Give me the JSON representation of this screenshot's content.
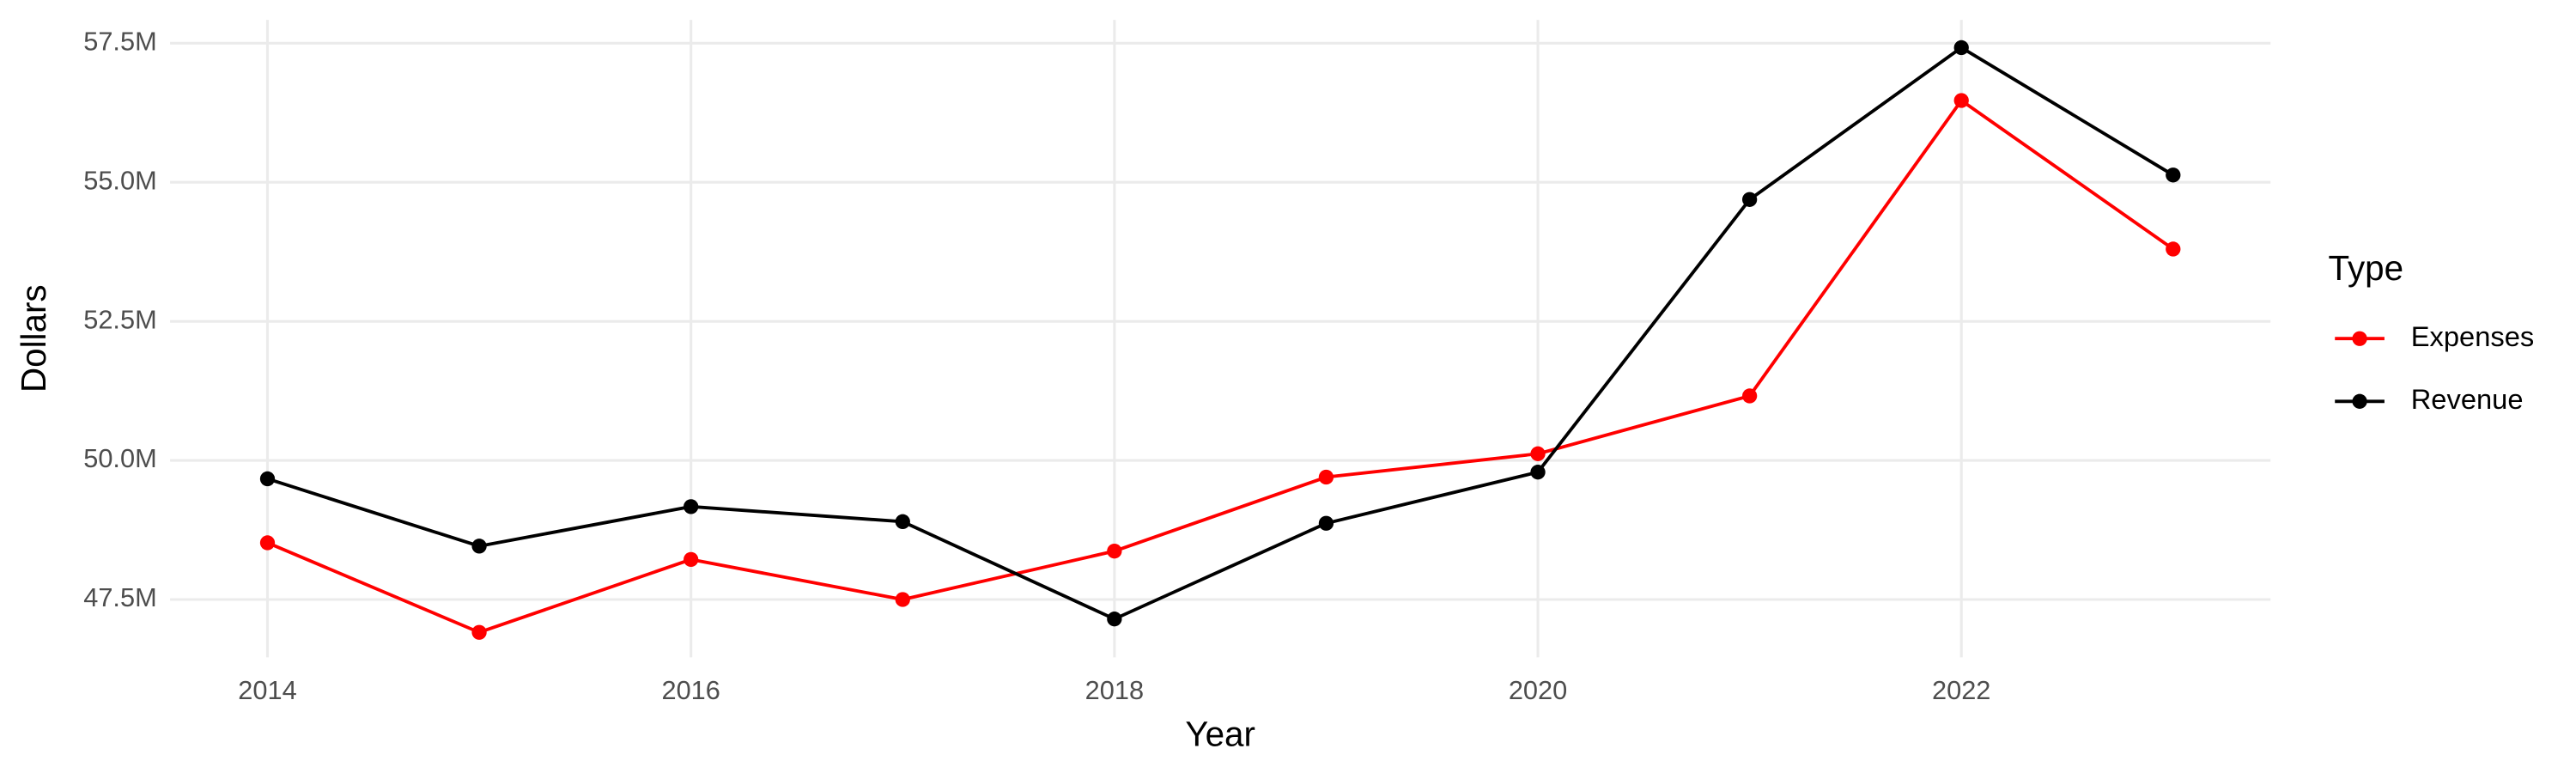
{
  "chart_data": {
    "type": "line",
    "x_label": "Year",
    "y_label": "Dollars",
    "x": [
      2014,
      2015,
      2016,
      2017,
      2018,
      2019,
      2020,
      2021,
      2022,
      2023
    ],
    "series": [
      {
        "name": "Expenses",
        "color": "#ff0000",
        "values": [
          48520000,
          46910000,
          48220000,
          47500000,
          48370000,
          49700000,
          50120000,
          51160000,
          56470000,
          53800000
        ]
      },
      {
        "name": "Revenue",
        "color": "#000000",
        "values": [
          49670000,
          48460000,
          49170000,
          48900000,
          47150000,
          48870000,
          49790000,
          54690000,
          57420000,
          55130000
        ]
      }
    ],
    "xlim": [
      2013.54,
      2023.46
    ],
    "xticks": [
      2014,
      2016,
      2018,
      2020,
      2022
    ],
    "ylim": [
      46460000,
      57920000
    ],
    "yticks": [
      {
        "value": 47500000,
        "label": "47.5M"
      },
      {
        "value": 50000000,
        "label": "50.0M"
      },
      {
        "value": 52500000,
        "label": "52.5M"
      },
      {
        "value": 55000000,
        "label": "55.0M"
      },
      {
        "value": 57500000,
        "label": "57.5M"
      }
    ],
    "grid": true,
    "legend_title": "Type",
    "legend": "right"
  }
}
